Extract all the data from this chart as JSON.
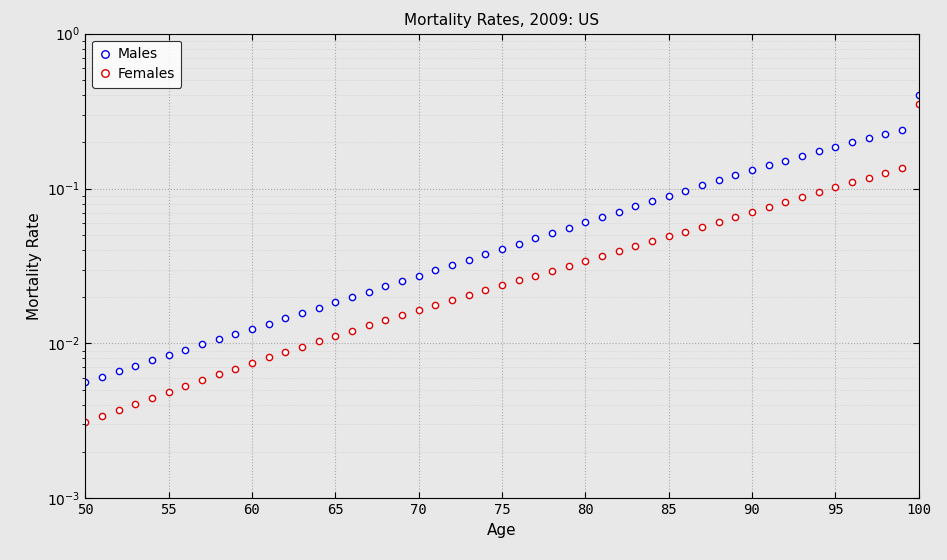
{
  "title": "Mortality Rates, 2009: US",
  "xlabel": "Age",
  "ylabel": "Mortality Rate",
  "ages": [
    50,
    51,
    52,
    53,
    54,
    55,
    56,
    57,
    58,
    59,
    60,
    61,
    62,
    63,
    64,
    65,
    66,
    67,
    68,
    69,
    70,
    71,
    72,
    73,
    74,
    75,
    76,
    77,
    78,
    79,
    80,
    81,
    82,
    83,
    84,
    85,
    86,
    87,
    88,
    89,
    90,
    91,
    92,
    93,
    94,
    95,
    96,
    97,
    98,
    99,
    100
  ],
  "males": [
    0.0056,
    0.0061,
    0.0066,
    0.0072,
    0.0078,
    0.0084,
    0.0091,
    0.00985,
    0.01065,
    0.0115,
    0.01245,
    0.01345,
    0.01455,
    0.01575,
    0.01705,
    0.01845,
    0.01998,
    0.02162,
    0.0234,
    0.02533,
    0.02742,
    0.02968,
    0.03212,
    0.03476,
    0.03762,
    0.04072,
    0.04408,
    0.04773,
    0.05168,
    0.05596,
    0.0606,
    0.06561,
    0.07102,
    0.07685,
    0.08312,
    0.08987,
    0.0971,
    0.10483,
    0.11309,
    0.12188,
    0.13122,
    0.14112,
    0.15158,
    0.1626,
    0.17419,
    0.18634,
    0.19904,
    0.21228,
    0.22606,
    0.24036,
    0.4
  ],
  "females": [
    0.0031,
    0.0034,
    0.00372,
    0.00407,
    0.00446,
    0.00487,
    0.00532,
    0.0058,
    0.00632,
    0.00688,
    0.00748,
    0.00812,
    0.00881,
    0.00955,
    0.01034,
    0.01119,
    0.0121,
    0.01307,
    0.01411,
    0.01522,
    0.01641,
    0.01769,
    0.01905,
    0.02051,
    0.02207,
    0.02374,
    0.02553,
    0.02745,
    0.02951,
    0.03172,
    0.0341,
    0.03667,
    0.03944,
    0.04242,
    0.04562,
    0.04908,
    0.0528,
    0.05681,
    0.06113,
    0.06578,
    0.07078,
    0.07616,
    0.08194,
    0.08814,
    0.09478,
    0.10189,
    0.10948,
    0.11758,
    0.1262,
    0.13535,
    0.35
  ],
  "male_color": "#0000ee",
  "female_color": "#dd0000",
  "bg_color": "#e8e8e8",
  "plot_bg_color": "#e8e8e8",
  "xlim": [
    50,
    100
  ],
  "ylim_min": 0.001,
  "ylim_max": 1.0,
  "xticks": [
    50,
    55,
    60,
    65,
    70,
    75,
    80,
    85,
    90,
    95,
    100
  ]
}
